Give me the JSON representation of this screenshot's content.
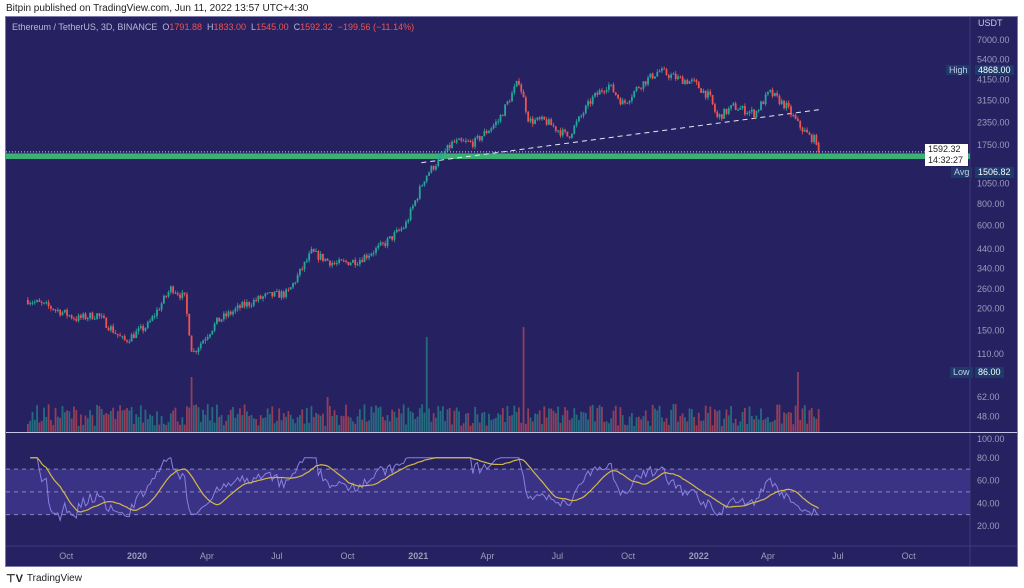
{
  "published": "Bitpin published on TradingView.com, Jun 11, 2022 13:57 UTC+4:30",
  "symbol": "Ethereum / TetherUS, 3D, BINANCE",
  "ohlc": {
    "o_label": "O",
    "o": "1791.88",
    "h_label": "H",
    "h": "1833.00",
    "l_label": "L",
    "l": "1545.00",
    "c_label": "C",
    "c": "1592.32",
    "change": "−199.56 (−11.14%)"
  },
  "currency": "USDT",
  "price_axis": [
    "7000.00",
    "5400.00",
    "4150.00",
    "3150.00",
    "2350.00",
    "1750.00",
    "1050.00",
    "800.00",
    "600.00",
    "440.00",
    "340.00",
    "260.00",
    "200.00",
    "150.00",
    "110.00",
    "62.00",
    "48.00"
  ],
  "rsi_axis": [
    "100.00",
    "80.00",
    "60.00",
    "40.00",
    "20.00"
  ],
  "time_axis": [
    {
      "label": "Oct",
      "bold": false
    },
    {
      "label": "2020",
      "bold": true
    },
    {
      "label": "Apr",
      "bold": false
    },
    {
      "label": "Jul",
      "bold": false
    },
    {
      "label": "Oct",
      "bold": false
    },
    {
      "label": "2021",
      "bold": true
    },
    {
      "label": "Apr",
      "bold": false
    },
    {
      "label": "Jul",
      "bold": false
    },
    {
      "label": "Oct",
      "bold": false
    },
    {
      "label": "2022",
      "bold": true
    },
    {
      "label": "Apr",
      "bold": false
    },
    {
      "label": "Jul",
      "bold": false
    },
    {
      "label": "Oct",
      "bold": false
    }
  ],
  "tags": {
    "high_label": "High",
    "high": "4868.00",
    "avg_label": "Avg",
    "avg": "1506.82",
    "low_label": "Low",
    "low": "86.00",
    "last_price": "1592.32",
    "countdown": "14:32:27"
  },
  "footer": "TradingView",
  "colors": {
    "bg": "#262261",
    "up": "#26a69a",
    "down": "#ef5350",
    "zone": "#3bb273",
    "rsi": "#8a7fe0",
    "rsi_ma": "#d4b84a"
  },
  "chart_data": {
    "type": "candlestick",
    "interval": "3D",
    "scale": "log",
    "ylim": [
      45,
      8000
    ],
    "support_zone": [
      1450,
      1560
    ],
    "trendline": [
      {
        "date": "2021-01-05",
        "price": 1380
      },
      {
        "date": "2022-06-11",
        "price": 2800
      }
    ],
    "anchors": [
      [
        "2019-08-12",
        225
      ],
      [
        "2019-09-15",
        200
      ],
      [
        "2019-10-15",
        175
      ],
      [
        "2019-11-10",
        185
      ],
      [
        "2019-12-15",
        130
      ],
      [
        "2020-01-15",
        160
      ],
      [
        "2020-02-15",
        265
      ],
      [
        "2020-03-03",
        230
      ],
      [
        "2020-03-13",
        110
      ],
      [
        "2020-04-15",
        170
      ],
      [
        "2020-05-15",
        205
      ],
      [
        "2020-06-15",
        235
      ],
      [
        "2020-07-15",
        245
      ],
      [
        "2020-08-15",
        420
      ],
      [
        "2020-09-15",
        360
      ],
      [
        "2020-10-15",
        380
      ],
      [
        "2020-11-15",
        460
      ],
      [
        "2020-12-15",
        600
      ],
      [
        "2021-01-10",
        1150
      ],
      [
        "2021-02-15",
        1800
      ],
      [
        "2021-03-15",
        1800
      ],
      [
        "2021-04-15",
        2400
      ],
      [
        "2021-05-12",
        4100
      ],
      [
        "2021-05-25",
        2400
      ],
      [
        "2021-06-15",
        2400
      ],
      [
        "2021-07-15",
        1950
      ],
      [
        "2021-08-15",
        3200
      ],
      [
        "2021-09-05",
        3900
      ],
      [
        "2021-09-25",
        3000
      ],
      [
        "2021-10-15",
        3800
      ],
      [
        "2021-11-10",
        4650
      ],
      [
        "2021-12-05",
        4200
      ],
      [
        "2021-12-25",
        4000
      ],
      [
        "2022-01-15",
        3300
      ],
      [
        "2022-01-25",
        2500
      ],
      [
        "2022-02-15",
        2900
      ],
      [
        "2022-03-15",
        2650
      ],
      [
        "2022-04-03",
        3500
      ],
      [
        "2022-04-25",
        2900
      ],
      [
        "2022-05-10",
        2300
      ],
      [
        "2022-05-25",
        1950
      ],
      [
        "2022-06-08",
        1791.88
      ]
    ],
    "last_candle": {
      "open": 1791.88,
      "high": 1833,
      "low": 1545,
      "close": 1592.32
    },
    "rsi": {
      "length": 14,
      "upper": 70,
      "middle": 50,
      "lower": 30,
      "ylim": [
        0,
        100
      ]
    }
  }
}
